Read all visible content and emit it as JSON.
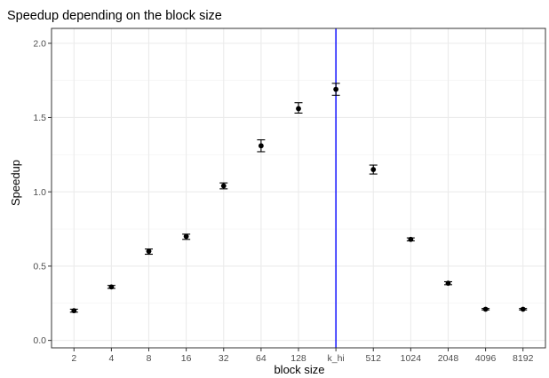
{
  "chart_data": {
    "type": "scatter",
    "title": "Speedup depending on the block size",
    "xlabel": "block size",
    "ylabel": "Speedup",
    "categories": [
      "2",
      "4",
      "8",
      "16",
      "32",
      "64",
      "128",
      "k_hi",
      "512",
      "1024",
      "2048",
      "4096",
      "8192"
    ],
    "ylim": [
      -0.05,
      2.1
    ],
    "yticks": [
      "0.0",
      "0.5",
      "1.0",
      "1.5",
      "2.0"
    ],
    "grid": true,
    "series": [
      {
        "values": [
          0.2,
          0.36,
          0.6,
          0.7,
          1.04,
          1.31,
          1.56,
          1.69,
          1.15,
          0.68,
          0.385,
          0.21,
          0.21
        ],
        "error_low": [
          0.19,
          0.35,
          0.58,
          0.68,
          1.02,
          1.27,
          1.53,
          1.65,
          1.12,
          0.67,
          0.375,
          0.205,
          0.205
        ],
        "error_high": [
          0.21,
          0.37,
          0.615,
          0.715,
          1.06,
          1.35,
          1.6,
          1.73,
          1.18,
          0.69,
          0.395,
          0.215,
          0.215
        ]
      }
    ],
    "vline": {
      "category": "k_hi",
      "color": "#0000ff"
    }
  }
}
